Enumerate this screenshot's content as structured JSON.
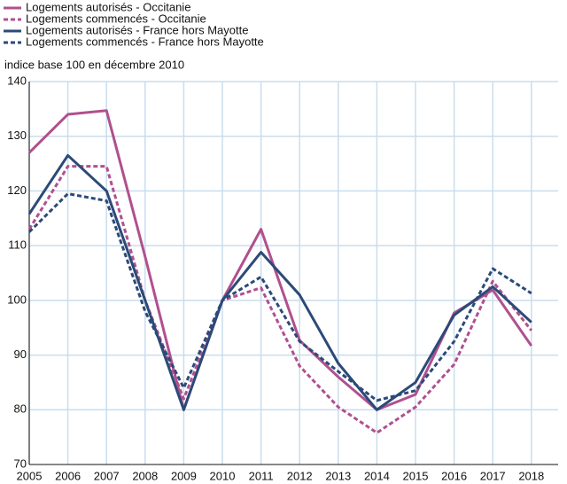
{
  "chart_data": {
    "type": "line",
    "subtitle": "indice base 100 en décembre 2010",
    "categories": [
      "2005",
      "2006",
      "2007",
      "2008",
      "2009",
      "2010",
      "2011",
      "2012",
      "2013",
      "2014",
      "2015",
      "2016",
      "2017",
      "2018"
    ],
    "series": [
      {
        "name": "Logements autorisés - Occitanie",
        "color": "#b0508f",
        "dashed": false,
        "values": [
          127,
          134,
          134.7,
          108,
          80,
          100,
          113,
          92.7,
          86,
          80,
          82.8,
          97.7,
          101.9,
          91.7
        ]
      },
      {
        "name": "Logements commencés - Occitanie",
        "color": "#b0508f",
        "dashed": true,
        "values": [
          113,
          124.5,
          124.5,
          100,
          82,
          100,
          102.3,
          88,
          80.5,
          75.8,
          80.5,
          88.3,
          103.5,
          94.5
        ]
      },
      {
        "name": "Logements autorisés - France hors Mayotte",
        "color": "#2c4a78",
        "dashed": false,
        "values": [
          115.8,
          126.5,
          120,
          100,
          80,
          100,
          108.8,
          101,
          88.5,
          80,
          85,
          97.3,
          102.5,
          96
        ]
      },
      {
        "name": "Logements commencés - France hors Mayotte",
        "color": "#2c4a78",
        "dashed": true,
        "values": [
          112.5,
          119.5,
          118.2,
          98,
          84,
          100,
          104.3,
          92.5,
          87,
          81.7,
          83.5,
          92.5,
          105.8,
          101.3
        ]
      }
    ],
    "ylim": [
      70,
      140
    ],
    "yticks": [
      70,
      80,
      90,
      100,
      110,
      120,
      130,
      140
    ],
    "grid": true,
    "legend": "top-left"
  }
}
